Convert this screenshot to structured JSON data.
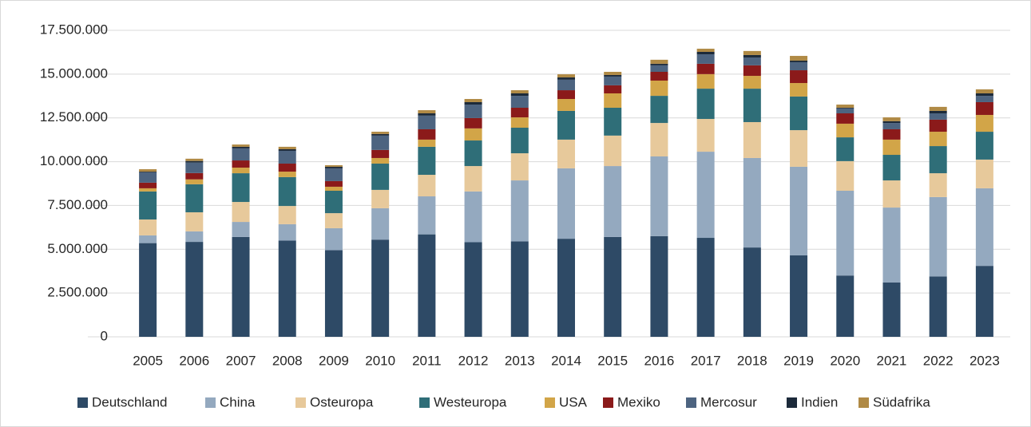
{
  "chart_data": {
    "type": "stacked_bar",
    "categories": [
      "2005",
      "2006",
      "2007",
      "2008",
      "2009",
      "2010",
      "2011",
      "2012",
      "2013",
      "2014",
      "2015",
      "2016",
      "2017",
      "2018",
      "2019",
      "2020",
      "2021",
      "2022",
      "2023"
    ],
    "series": [
      {
        "name": "Deutschland",
        "color": "#2e4a66",
        "values": [
          5350000,
          5420000,
          5700000,
          5500000,
          4950000,
          5550000,
          5850000,
          5400000,
          5450000,
          5600000,
          5700000,
          5750000,
          5650000,
          5100000,
          4650000,
          3500000,
          3100000,
          3450000,
          4050000
        ]
      },
      {
        "name": "China",
        "color": "#94a9bf",
        "values": [
          440000,
          600000,
          860000,
          930000,
          1250000,
          1790000,
          2170000,
          2900000,
          3480000,
          4020000,
          4050000,
          4550000,
          4920000,
          5110000,
          5060000,
          4840000,
          4280000,
          4530000,
          4430000
        ]
      },
      {
        "name": "Osteuropa",
        "color": "#e7c99b",
        "values": [
          910000,
          1090000,
          1140000,
          1040000,
          860000,
          1050000,
          1230000,
          1450000,
          1550000,
          1640000,
          1740000,
          1910000,
          1870000,
          2050000,
          2090000,
          1690000,
          1550000,
          1360000,
          1640000
        ]
      },
      {
        "name": "Westeuropa",
        "color": "#2f6e78",
        "values": [
          1600000,
          1600000,
          1640000,
          1650000,
          1280000,
          1500000,
          1600000,
          1460000,
          1460000,
          1640000,
          1590000,
          1550000,
          1730000,
          1910000,
          1920000,
          1360000,
          1460000,
          1550000,
          1590000
        ]
      },
      {
        "name": "USA",
        "color": "#d2a548",
        "values": [
          180000,
          280000,
          320000,
          310000,
          230000,
          320000,
          410000,
          690000,
          590000,
          680000,
          820000,
          870000,
          830000,
          730000,
          770000,
          780000,
          870000,
          820000,
          960000
        ]
      },
      {
        "name": "Mexiko",
        "color": "#8b1a1a",
        "values": [
          320000,
          360000,
          410000,
          460000,
          320000,
          460000,
          590000,
          590000,
          550000,
          500000,
          460000,
          500000,
          590000,
          600000,
          730000,
          590000,
          590000,
          690000,
          730000
        ]
      },
      {
        "name": "Mercosur",
        "color": "#4d6480",
        "values": [
          590000,
          600000,
          690000,
          730000,
          730000,
          820000,
          780000,
          770000,
          680000,
          600000,
          500000,
          370000,
          540000,
          450000,
          460000,
          280000,
          360000,
          360000,
          360000
        ]
      },
      {
        "name": "Indien",
        "color": "#1c2a3a",
        "values": [
          40000,
          90000,
          90000,
          90000,
          90000,
          90000,
          130000,
          140000,
          140000,
          130000,
          90000,
          90000,
          140000,
          140000,
          90000,
          40000,
          100000,
          140000,
          140000
        ]
      },
      {
        "name": "Südafrika",
        "color": "#b08a45",
        "values": [
          140000,
          130000,
          130000,
          140000,
          90000,
          130000,
          180000,
          180000,
          180000,
          180000,
          180000,
          230000,
          180000,
          230000,
          270000,
          180000,
          220000,
          230000,
          230000
        ]
      }
    ],
    "ylim": [
      0,
      17500000
    ],
    "yticks": [
      0,
      {
        "value": 2500000,
        "label": "2.500.000"
      },
      {
        "value": 5000000,
        "label": "5.000.000"
      },
      {
        "value": 7500000,
        "label": "7.500.000"
      },
      {
        "value": 10000000,
        "label": "10.000.000"
      },
      {
        "value": 12500000,
        "label": "12.500.000"
      },
      {
        "value": 15000000,
        "label": "15.000.000"
      },
      {
        "value": 17500000,
        "label": "17.500.000"
      }
    ],
    "grid": true,
    "legend": "bottom"
  }
}
